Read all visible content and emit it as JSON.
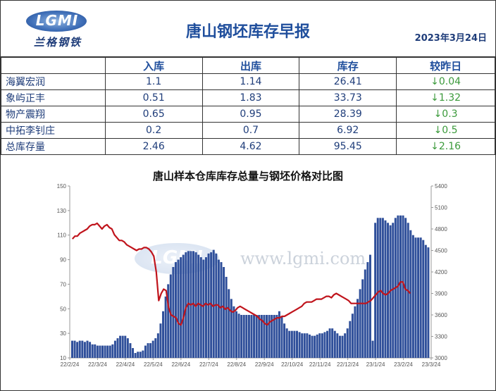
{
  "header": {
    "logo_text": "LGMI",
    "logo_cn": "兰格钢铁",
    "title": "唐山钢坯库存早报",
    "date": "2023年3月24日"
  },
  "table": {
    "columns": [
      "",
      "入库",
      "出库",
      "库存",
      "较昨日"
    ],
    "rows": [
      {
        "name": "海翼宏润",
        "in": "1.1",
        "out": "1.14",
        "stock": "26.41",
        "change": "↓0.04"
      },
      {
        "name": "象屿正丰",
        "in": "0.51",
        "out": "1.83",
        "stock": "33.73",
        "change": "↓1.32"
      },
      {
        "name": "物产震翔",
        "in": "0.65",
        "out": "0.95",
        "stock": "28.39",
        "change": "↓0.3"
      },
      {
        "name": "中拓李钊庄",
        "in": "0.2",
        "out": "0.7",
        "stock": "6.92",
        "change": "↓0.5"
      },
      {
        "name": "总库存量",
        "in": "2.46",
        "out": "4.62",
        "stock": "95.45",
        "change": "↓2.16"
      }
    ]
  },
  "watermark": {
    "logo_text": "LGMI",
    "url": "www.lgmi.com"
  },
  "chart_data": {
    "type": "bar",
    "title": "唐山样本仓库库存总量与钢坯价格对比图",
    "colors": {
      "bars": "#2f4f9a",
      "line": "#c0141c"
    },
    "y_left": {
      "ticks": [
        10,
        30,
        50,
        70,
        90,
        110,
        130,
        150
      ],
      "range": [
        10,
        150
      ]
    },
    "y_right": {
      "ticks": [
        3000,
        3300,
        3600,
        3900,
        4200,
        4500,
        4800,
        5100,
        5400
      ],
      "range": [
        3000,
        5400
      ]
    },
    "x_tick_labels": [
      "22/2/24",
      "22/3/24",
      "22/4/24",
      "22/5/24",
      "22/6/24",
      "22/7/24",
      "22/8/24",
      "22/9/24",
      "22/10/24",
      "22/11/24",
      "22/12/24",
      "23/1/24",
      "23/2/24",
      "23/3/24"
    ],
    "series": [
      {
        "kind": "bar",
        "axis": "left",
        "values": [
          24,
          24,
          23,
          24,
          24,
          23,
          24,
          23,
          21,
          21,
          20,
          20,
          20,
          20,
          20,
          20,
          21,
          24,
          26,
          28,
          28,
          28,
          26,
          22,
          18,
          14,
          15,
          15,
          16,
          20,
          22,
          22,
          24,
          26,
          30,
          38,
          48,
          60,
          70,
          78,
          84,
          88,
          90,
          92,
          94,
          96,
          97,
          97,
          97,
          96,
          94,
          92,
          90,
          92,
          95,
          96,
          98,
          95,
          90,
          88,
          84,
          76,
          66,
          58,
          52,
          48,
          46,
          45,
          45,
          45,
          45,
          45,
          45,
          45,
          45,
          45,
          45,
          45,
          45,
          45,
          45,
          45,
          48,
          44,
          38,
          34,
          32,
          32,
          32,
          32,
          31,
          30,
          30,
          30,
          29,
          28,
          28,
          29,
          30,
          30,
          31,
          32,
          34,
          34,
          32,
          30,
          28,
          28,
          30,
          34,
          40,
          46,
          52,
          58,
          66,
          74,
          82,
          88,
          94,
          24,
          120,
          124,
          124,
          124,
          122,
          120,
          118,
          120,
          124,
          126,
          126,
          126,
          124,
          120,
          114,
          110,
          108,
          108,
          108,
          106,
          102,
          100
        ]
      },
      {
        "kind": "line",
        "axis": "right",
        "values": [
          4660,
          4700,
          4700,
          4740,
          4760,
          4780,
          4800,
          4840,
          4860,
          4860,
          4880,
          4840,
          4800,
          4840,
          4860,
          4820,
          4800,
          4720,
          4680,
          4640,
          4640,
          4620,
          4580,
          4560,
          4540,
          4520,
          4500,
          4520,
          4520,
          4540,
          4540,
          4520,
          4480,
          4420,
          4200,
          3800,
          3900,
          3960,
          3940,
          3700,
          3600,
          3580,
          3560,
          3480,
          3460,
          3560,
          3700,
          3760,
          3740,
          3760,
          3720,
          3760,
          3740,
          3720,
          3760,
          3740,
          3760,
          3720,
          3740,
          3740,
          3700,
          3720,
          3680,
          3700,
          3660,
          3640,
          3660,
          3700,
          3720,
          3700,
          3680,
          3660,
          3640,
          3620,
          3600,
          3580,
          3540,
          3520,
          3480,
          3460,
          3500,
          3520,
          3540,
          3560,
          3560,
          3580,
          3580,
          3600,
          3620,
          3640,
          3660,
          3680,
          3700,
          3720,
          3760,
          3780,
          3780,
          3780,
          3800,
          3820,
          3820,
          3820,
          3840,
          3860,
          3860,
          3840,
          3880,
          3900,
          3880,
          3860,
          3840,
          3820,
          3800,
          3760,
          3760,
          3760,
          3760,
          3760,
          3760,
          3760,
          3780,
          3800,
          3840,
          3880,
          3920,
          3940,
          3900,
          3880,
          3900,
          3940,
          3960,
          3980,
          4000,
          4060,
          4060,
          3960,
          3940,
          3900
        ]
      }
    ]
  }
}
